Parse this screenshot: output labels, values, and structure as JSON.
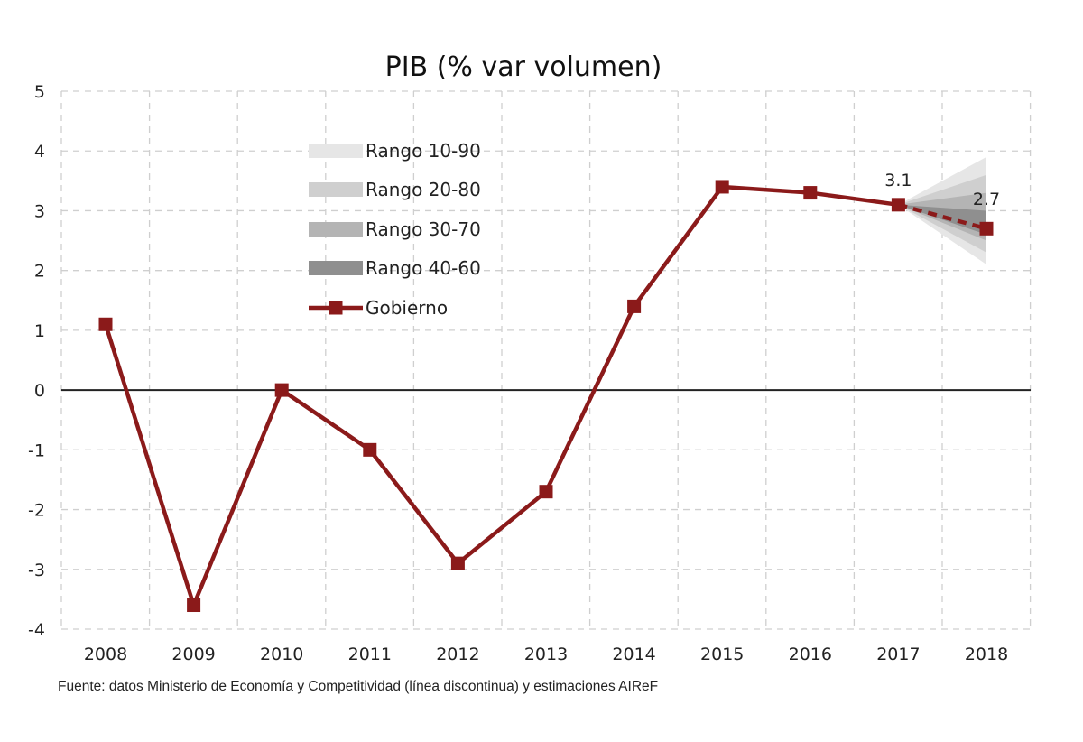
{
  "chart_data": {
    "type": "line",
    "title": "PIB (% var volumen)",
    "xlabel": "",
    "ylabel": "",
    "categories": [
      "2008",
      "2009",
      "2010",
      "2011",
      "2012",
      "2013",
      "2014",
      "2015",
      "2016",
      "2017",
      "2018"
    ],
    "ylim": [
      -4,
      5
    ],
    "yticks": [
      "5",
      "4",
      "3",
      "2",
      "1",
      "0",
      "-1",
      "-2",
      "-3",
      "-4"
    ],
    "grid": true,
    "legend_position": "top-left",
    "series": [
      {
        "name": "Gobierno",
        "color": "#8b1a1a",
        "values": [
          1.1,
          -3.6,
          0.0,
          -1.0,
          -2.9,
          -1.7,
          1.4,
          3.4,
          3.3,
          3.1,
          2.7
        ],
        "dashed_from_index": 9
      }
    ],
    "fan": {
      "from_category": "2017",
      "to_category": "2018",
      "start_value": 3.1,
      "bands": [
        {
          "name": "Rango 10-90",
          "low": 2.1,
          "high": 3.9,
          "color": "#e6e6e6"
        },
        {
          "name": "Rango 20-80",
          "low": 2.3,
          "high": 3.6,
          "color": "#cfcfcf"
        },
        {
          "name": "Rango 30-70",
          "low": 2.5,
          "high": 3.3,
          "color": "#b4b4b4"
        },
        {
          "name": "Rango 40-60",
          "low": 2.6,
          "high": 3.0,
          "color": "#8f8f8f"
        }
      ]
    },
    "annotations": [
      {
        "text": "3.1",
        "category": "2017",
        "value": 3.1
      },
      {
        "text": "2.7",
        "category": "2018",
        "value": 2.7
      }
    ],
    "source": "Fuente: datos Ministerio de Economía y Competitividad (línea discontinua) y estimaciones AIReF"
  }
}
